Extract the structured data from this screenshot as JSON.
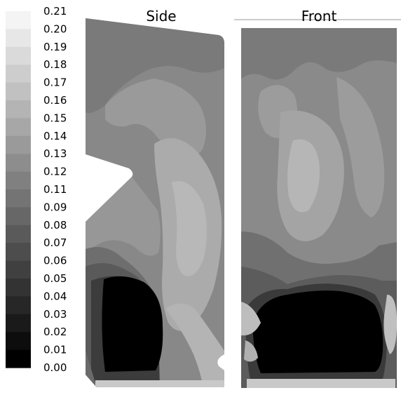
{
  "colorbar": {
    "levels": [
      "0.21",
      "0.20",
      "0.19",
      "0.18",
      "0.17",
      "0.16",
      "0.15",
      "0.14",
      "0.13",
      "0.12",
      "0.11",
      "0.09",
      "0.08",
      "0.07",
      "0.06",
      "0.05",
      "0.04",
      "0.03",
      "0.02",
      "0.01",
      "0.00"
    ]
  },
  "panels": {
    "side": {
      "title": "Side"
    },
    "front": {
      "title": "Front"
    }
  }
}
